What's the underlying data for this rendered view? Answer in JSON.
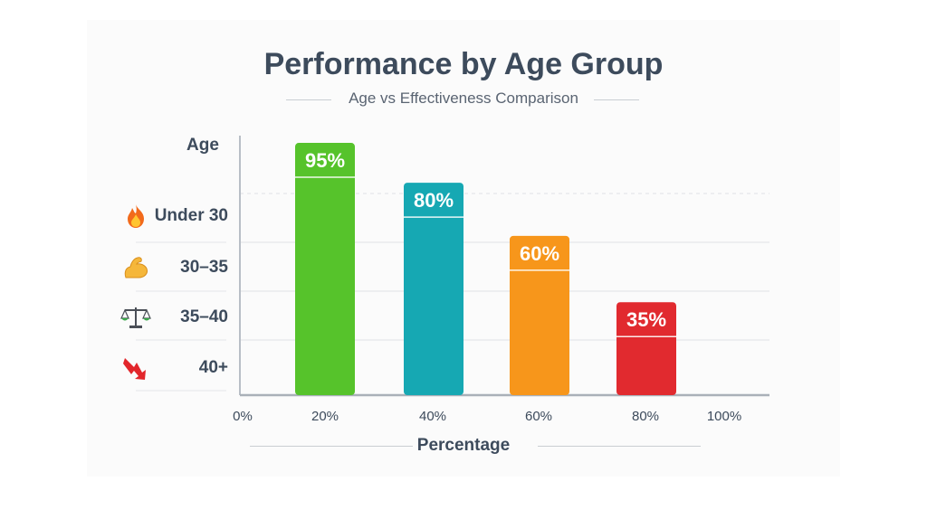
{
  "chart_data": {
    "type": "bar",
    "title": "Performance by Age Group",
    "subtitle": "Age vs Effectiveness Comparison",
    "ylabel": "Age",
    "xlabel": "Percentage",
    "categories": [
      "Under 30",
      "30–35",
      "35–40",
      "40+"
    ],
    "category_icons": [
      "fire-icon",
      "flexed-biceps-icon",
      "balance-scale-icon",
      "down-arrow-icon"
    ],
    "values": [
      95,
      80,
      60,
      35
    ],
    "value_labels": [
      "95%",
      "80%",
      "60%",
      "35%"
    ],
    "value_suffix": "%",
    "x_ticks": [
      "0%",
      "20%",
      "40%",
      "60%",
      "80%",
      "100%"
    ],
    "ylim": [
      0,
      100
    ],
    "grid": true,
    "colors": [
      "#56c32b",
      "#16a8b3",
      "#f7961b",
      "#e12a2f"
    ]
  }
}
